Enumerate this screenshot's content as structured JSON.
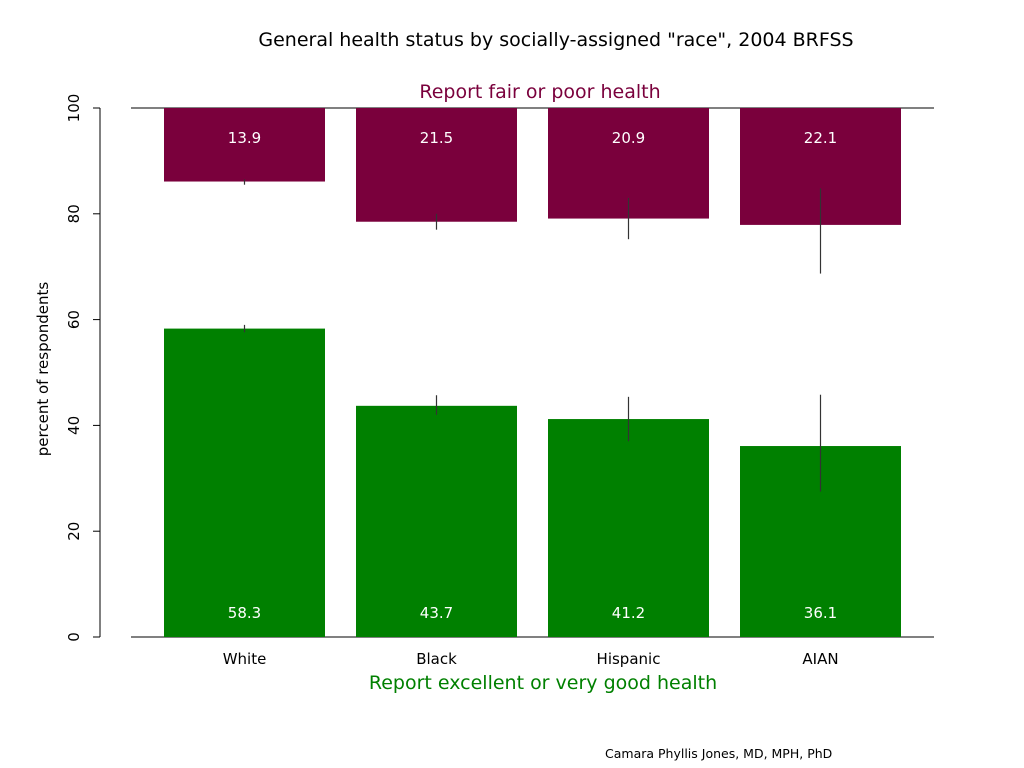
{
  "credit": "Camara Phyllis Jones, MD, MPH, PhD",
  "colors": {
    "poor": "#7a003c",
    "good": "#008000",
    "poor_text": "#7a003c",
    "good_text": "#008000",
    "bar_label": "#ffffff",
    "error_bar": "#333333",
    "axis": "#000000"
  },
  "chart_data": {
    "type": "bar",
    "title": "General health status by socially-assigned \"race\", 2004 BRFSS",
    "top_label": "Report fair or poor health",
    "bottom_label": "Report excellent or very good health",
    "ylabel": "percent of respondents",
    "xlabel": "",
    "ylim": [
      0,
      100
    ],
    "yticks": [
      0,
      20,
      40,
      60,
      80,
      100
    ],
    "categories": [
      "White",
      "Black",
      "Hispanic",
      "AIAN"
    ],
    "series": [
      {
        "name": "Report excellent or very good health",
        "anchor": "bottom",
        "values": [
          58.3,
          43.7,
          41.2,
          36.1
        ],
        "labels": [
          "58.3",
          "43.7",
          "41.2",
          "36.1"
        ],
        "ci": [
          [
            57.6,
            59.0
          ],
          [
            42.0,
            45.7
          ],
          [
            37.0,
            45.4
          ],
          [
            27.5,
            45.8
          ]
        ]
      },
      {
        "name": "Report fair or poor health",
        "anchor": "top",
        "values": [
          13.9,
          21.5,
          20.9,
          22.1
        ],
        "labels": [
          "13.9",
          "21.5",
          "20.9",
          "22.1"
        ],
        "ci": [
          [
            13.5,
            14.5
          ],
          [
            20.0,
            23.0
          ],
          [
            17.0,
            24.8
          ],
          [
            15.2,
            31.3
          ]
        ]
      }
    ],
    "grid": false,
    "legend": "none"
  }
}
